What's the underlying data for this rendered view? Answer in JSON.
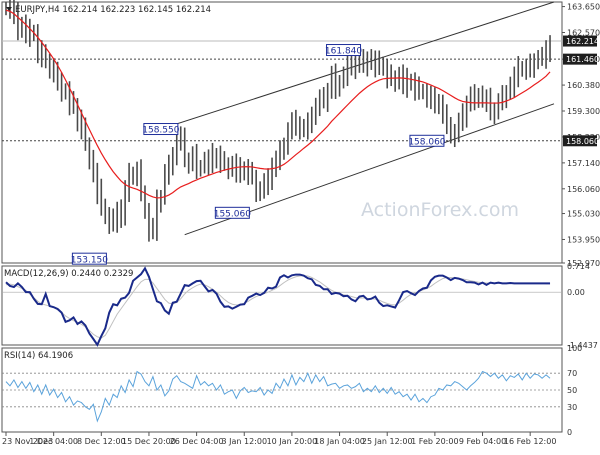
{
  "colors": {
    "price": "#4a4a4a",
    "ema": "#e81e1e",
    "channel": "#333333",
    "level_line": "#444444",
    "label_border": "#1f2f9a",
    "macd": "#1a2a8a",
    "macd_signal": "#c0c0c0",
    "rsi": "#5ba3db",
    "tag_bg": "#1e1e1e",
    "tag_text": "#ffffff",
    "watermark": "#cfd6df"
  },
  "watermark": "ActionForex.com",
  "chart_data": [
    {
      "type": "line",
      "title": "EURJPY,H4  162.214 162.223 162.145 162.214",
      "ylim": [
        152.97,
        163.84
      ],
      "yticks": [
        "163.650",
        "162.570",
        "161.460",
        "160.380",
        "159.300",
        "158.220",
        "157.140",
        "156.060",
        "155.030",
        "153.950",
        "152.970"
      ],
      "x_labels": [
        "23 Nov 2023",
        "1 Dec 04:00",
        "8 Dec 12:00",
        "15 Dec 20:00",
        "26 Dec 04:00",
        "3 Jan 12:00",
        "10 Jan 20:00",
        "18 Jan 04:00",
        "25 Jan 12:00",
        "1 Feb 20:00",
        "9 Feb 04:00",
        "16 Feb 12:00"
      ],
      "x": [
        0,
        4,
        8,
        12,
        16,
        20,
        24,
        28,
        32,
        36,
        40,
        44,
        48,
        52,
        56,
        60,
        64,
        68,
        72,
        76,
        80,
        84,
        88,
        92,
        96,
        100,
        104,
        108,
        112,
        116,
        120,
        124,
        128,
        132,
        136,
        140,
        144,
        148,
        152,
        156,
        160,
        164,
        168,
        172,
        176,
        180,
        184,
        188,
        192,
        196,
        200,
        204,
        208,
        212,
        216,
        220,
        224,
        228,
        232,
        236,
        240,
        244,
        248,
        252,
        256,
        260,
        264,
        268,
        272,
        276,
        280,
        284,
        288,
        292,
        296,
        300,
        304,
        308,
        312,
        316,
        320,
        324,
        328,
        332,
        336,
        340,
        344,
        348,
        352,
        356,
        360,
        364,
        368,
        372,
        376,
        380,
        384,
        388,
        392,
        396,
        400,
        404,
        408,
        412,
        416,
        420,
        424,
        428,
        432,
        436,
        440,
        444,
        448,
        452,
        456,
        460,
        464,
        468,
        472,
        476,
        480,
        484,
        488,
        492,
        496,
        500,
        504,
        508,
        512,
        516,
        520,
        524,
        528,
        532,
        536,
        540,
        544,
        548
      ],
      "series": [
        {
          "values": [
            163.57,
            163.69,
            163.25,
            162.73,
            162.89,
            162.4,
            162.61,
            162.54,
            161.77,
            161.5,
            161.36,
            161.08,
            160.82,
            160.63,
            160.07,
            160.06,
            159.55,
            159.51,
            158.93,
            158.5,
            157.92,
            157.3,
            156.66,
            155.9,
            155.32,
            154.87,
            154.61,
            154.71,
            155.24,
            154.81,
            155.94,
            156.56,
            156.65,
            156.76,
            155.92,
            155.09,
            154.29,
            154.37,
            155.45,
            155.68,
            156.66,
            156.95,
            157.52,
            158.18,
            158.03,
            157.24,
            157.12,
            157.4,
            156.95,
            156.98,
            157.22,
            157.05,
            157.39,
            157.43,
            157.1,
            157.09,
            156.89,
            157.05,
            156.8,
            156.69,
            156.87,
            156.65,
            156.57,
            155.99,
            155.93,
            156.23,
            156.34,
            157.03,
            157.22,
            157.55,
            157.91,
            158.45,
            158.77,
            158.75,
            158.49,
            158.54,
            158.71,
            159.2,
            159.47,
            159.72,
            159.69,
            160.14,
            160.75,
            160.28,
            160.52,
            160.77,
            161.12,
            161.11,
            161.27,
            161.35,
            161.17,
            161.5,
            161.34,
            161.18,
            161.24,
            161.05,
            160.67,
            160.71,
            160.58,
            160.76,
            160.28,
            160.52,
            160.48,
            160.21,
            160.15,
            160.07,
            159.87,
            159.71,
            159.68,
            159.55,
            159.05,
            158.77,
            158.28,
            158.38,
            158.75,
            159.04,
            159.61,
            159.89,
            159.81,
            159.98,
            159.72,
            159.69,
            159.24,
            159.33,
            159.61,
            159.85,
            160.1,
            160.35,
            160.67,
            161.01,
            161.05,
            161.03,
            161.16,
            161.42,
            161.46,
            161.49,
            161.67,
            162.13
          ]
        },
        {
          "values": [
            163.5,
            163.45,
            163.35,
            163.2,
            163.05,
            162.9,
            162.73,
            162.56,
            162.37,
            162.16,
            161.94,
            161.71,
            161.47,
            161.2,
            160.91,
            160.59,
            160.26,
            159.92,
            159.57,
            159.22,
            158.87,
            158.53,
            158.19,
            157.86,
            157.55,
            157.27,
            157.01,
            156.77,
            156.57,
            156.38,
            156.24,
            156.15,
            156.09,
            156.04,
            155.96,
            155.88,
            155.79,
            155.72,
            155.68,
            155.69,
            155.73,
            155.8,
            155.9,
            156.03,
            156.14,
            156.21,
            156.28,
            156.36,
            156.43,
            156.5,
            156.56,
            156.62,
            156.68,
            156.74,
            156.79,
            156.84,
            156.88,
            156.92,
            156.95,
            156.97,
            156.98,
            156.98,
            156.97,
            156.94,
            156.91,
            156.89,
            156.88,
            156.9,
            156.93,
            156.99,
            157.08,
            157.2,
            157.34,
            157.48,
            157.61,
            157.75,
            157.88,
            158.02,
            158.18,
            158.34,
            158.5,
            158.67,
            158.87,
            159.04,
            159.21,
            159.38,
            159.55,
            159.72,
            159.88,
            160.04,
            160.18,
            160.31,
            160.42,
            160.51,
            160.59,
            160.64,
            160.66,
            160.67,
            160.67,
            160.68,
            160.67,
            160.65,
            160.62,
            160.59,
            160.55,
            160.51,
            160.45,
            160.38,
            160.31,
            160.24,
            160.15,
            160.05,
            159.95,
            159.85,
            159.76,
            159.7,
            159.67,
            159.65,
            159.64,
            159.64,
            159.64,
            159.64,
            159.63,
            159.63,
            159.63,
            159.66,
            159.72,
            159.78,
            159.86,
            159.96,
            160.06,
            160.16,
            160.27,
            160.39,
            160.5,
            160.62,
            160.75,
            160.93
          ]
        }
      ],
      "levels": [
        161.46,
        158.06
      ],
      "level_tags": [
        "161.460",
        "158.060"
      ],
      "current_tag": "162.214",
      "annotations": [
        {
          "text": "153.150",
          "x": 84,
          "y": 153.15
        },
        {
          "text": "158.550",
          "x": 156,
          "y": 158.55
        },
        {
          "text": "155.060",
          "x": 228,
          "y": 155.06
        },
        {
          "text": "161.840",
          "x": 340,
          "y": 161.84
        },
        {
          "text": "158.060",
          "x": 424,
          "y": 158.06
        }
      ],
      "channel_lines": [
        {
          "x": [
            156,
            552
          ],
          "y": [
            158.55,
            163.84
          ]
        },
        {
          "x": [
            180,
            552
          ],
          "y": [
            154.15,
            159.6
          ]
        }
      ]
    },
    {
      "type": "line",
      "title": "MACD(12,26,9) 0.2440 0.2329",
      "ylim": [
        -1.4437,
        0.714
      ],
      "yticks": [
        "0.714",
        "0.00",
        "-1.4437"
      ],
      "series": [
        {
          "values": [
            0.27,
            0.17,
            0.14,
            0.24,
            0.14,
            0.0,
            0.0,
            -0.18,
            -0.32,
            -0.33,
            -0.05,
            -0.38,
            -0.41,
            -0.46,
            -0.56,
            -0.81,
            -0.77,
            -0.69,
            -0.87,
            -0.8,
            -0.91,
            -1.13,
            -1.28,
            -1.44,
            -1.2,
            -0.99,
            -0.56,
            -0.33,
            -0.36,
            -0.18,
            -0.15,
            -0.02,
            0.31,
            0.4,
            0.49,
            0.65,
            0.42,
            0.08,
            -0.25,
            -0.3,
            -0.5,
            -0.59,
            -0.29,
            -0.26,
            -0.04,
            0.19,
            0.17,
            0.24,
            0.3,
            0.31,
            0.16,
            0.02,
            0.06,
            -0.04,
            -0.26,
            -0.4,
            -0.39,
            -0.45,
            -0.4,
            -0.34,
            -0.33,
            -0.15,
            -0.1,
            -0.04,
            -0.08,
            -0.02,
            0.12,
            0.1,
            0.15,
            0.4,
            0.46,
            0.4,
            0.46,
            0.48,
            0.48,
            0.45,
            0.38,
            0.35,
            0.2,
            0.17,
            0.08,
            0.08,
            -0.05,
            -0.02,
            -0.04,
            -0.11,
            -0.1,
            -0.2,
            -0.25,
            -0.12,
            -0.1,
            -0.2,
            -0.18,
            -0.12,
            -0.29,
            -0.38,
            -0.36,
            -0.39,
            -0.42,
            -0.22,
            0.0,
            0.03,
            -0.03,
            -0.08,
            0.03,
            0.1,
            0.12,
            0.32,
            0.42,
            0.45,
            0.45,
            0.4,
            0.33,
            0.39,
            0.37,
            0.33,
            0.27,
            0.27,
            0.26,
            0.21,
            0.26,
            0.2,
            0.26,
            0.24,
            0.26,
            0.24,
            0.24,
            0.25,
            0.24,
            0.24,
            0.24,
            0.24,
            0.24,
            0.24,
            0.24,
            0.24,
            0.24,
            0.24
          ]
        },
        {
          "values": [
            0.2,
            0.22,
            0.2,
            0.15,
            0.1,
            0.05,
            -0.05,
            -0.15,
            -0.25,
            -0.32,
            -0.35,
            -0.38,
            -0.42,
            -0.48,
            -0.55,
            -0.65,
            -0.72,
            -0.78,
            -0.82,
            -0.88,
            -0.95,
            -1.05,
            -1.15,
            -1.22,
            -1.25,
            -1.18,
            -1.0,
            -0.8,
            -0.6,
            -0.45,
            -0.3,
            -0.15,
            0.0,
            0.15,
            0.28,
            0.35,
            0.35,
            0.25,
            0.1,
            -0.05,
            -0.2,
            -0.3,
            -0.32,
            -0.28,
            -0.18,
            -0.05,
            0.05,
            0.12,
            0.18,
            0.22,
            0.2,
            0.15,
            0.08,
            0.0,
            -0.1,
            -0.2,
            -0.28,
            -0.33,
            -0.35,
            -0.34,
            -0.3,
            -0.25,
            -0.18,
            -0.12,
            -0.08,
            -0.04,
            0.0,
            0.05,
            0.1,
            0.18,
            0.26,
            0.33,
            0.38,
            0.42,
            0.44,
            0.45,
            0.44,
            0.4,
            0.34,
            0.28,
            0.2,
            0.12,
            0.05,
            0.0,
            -0.04,
            -0.07,
            -0.09,
            -0.12,
            -0.15,
            -0.16,
            -0.16,
            -0.17,
            -0.18,
            -0.19,
            -0.22,
            -0.27,
            -0.31,
            -0.34,
            -0.35,
            -0.3,
            -0.22,
            -0.13,
            -0.06,
            -0.02,
            0.02,
            0.06,
            0.1,
            0.16,
            0.24,
            0.31,
            0.37,
            0.4,
            0.4,
            0.39,
            0.38,
            0.36,
            0.34,
            0.31,
            0.29,
            0.27,
            0.26,
            0.25,
            0.25,
            0.24,
            0.24,
            0.24,
            0.24,
            0.24,
            0.24,
            0.24,
            0.24,
            0.24,
            0.24,
            0.24,
            0.24,
            0.24,
            0.23,
            0.23
          ]
        }
      ]
    },
    {
      "type": "line",
      "title": "RSI(14) 64.1906",
      "ylim": [
        0,
        100
      ],
      "yticks": [
        "100",
        "70",
        "50",
        "30",
        "0"
      ],
      "reference_lines": [
        70,
        50,
        30
      ],
      "series": [
        {
          "values": [
            60,
            55,
            62,
            53,
            60,
            52,
            59,
            48,
            56,
            45,
            56,
            44,
            51,
            41,
            47,
            36,
            42,
            32,
            37,
            35,
            30,
            27,
            33,
            13,
            24,
            40,
            32,
            45,
            41,
            55,
            47,
            62,
            54,
            72,
            69,
            60,
            55,
            66,
            50,
            56,
            43,
            49,
            63,
            67,
            60,
            58,
            55,
            52,
            67,
            56,
            60,
            55,
            58,
            50,
            56,
            45,
            48,
            50,
            40,
            49,
            53,
            47,
            49,
            48,
            53,
            44,
            50,
            46,
            58,
            52,
            63,
            55,
            68,
            56,
            65,
            60,
            70,
            58,
            68,
            60,
            66,
            55,
            57,
            58,
            52,
            55,
            56,
            52,
            54,
            58,
            48,
            52,
            48,
            55,
            47,
            52,
            46,
            53,
            45,
            48,
            42,
            45,
            38,
            45,
            36,
            40,
            35,
            42,
            44,
            52,
            50,
            56,
            55,
            60,
            58,
            54,
            50,
            55,
            59,
            64,
            72,
            70,
            66,
            70,
            64,
            68,
            61,
            67,
            65,
            69,
            62,
            70,
            64,
            69,
            68,
            64,
            68,
            64,
            69,
            64
          ]
        }
      ]
    }
  ]
}
